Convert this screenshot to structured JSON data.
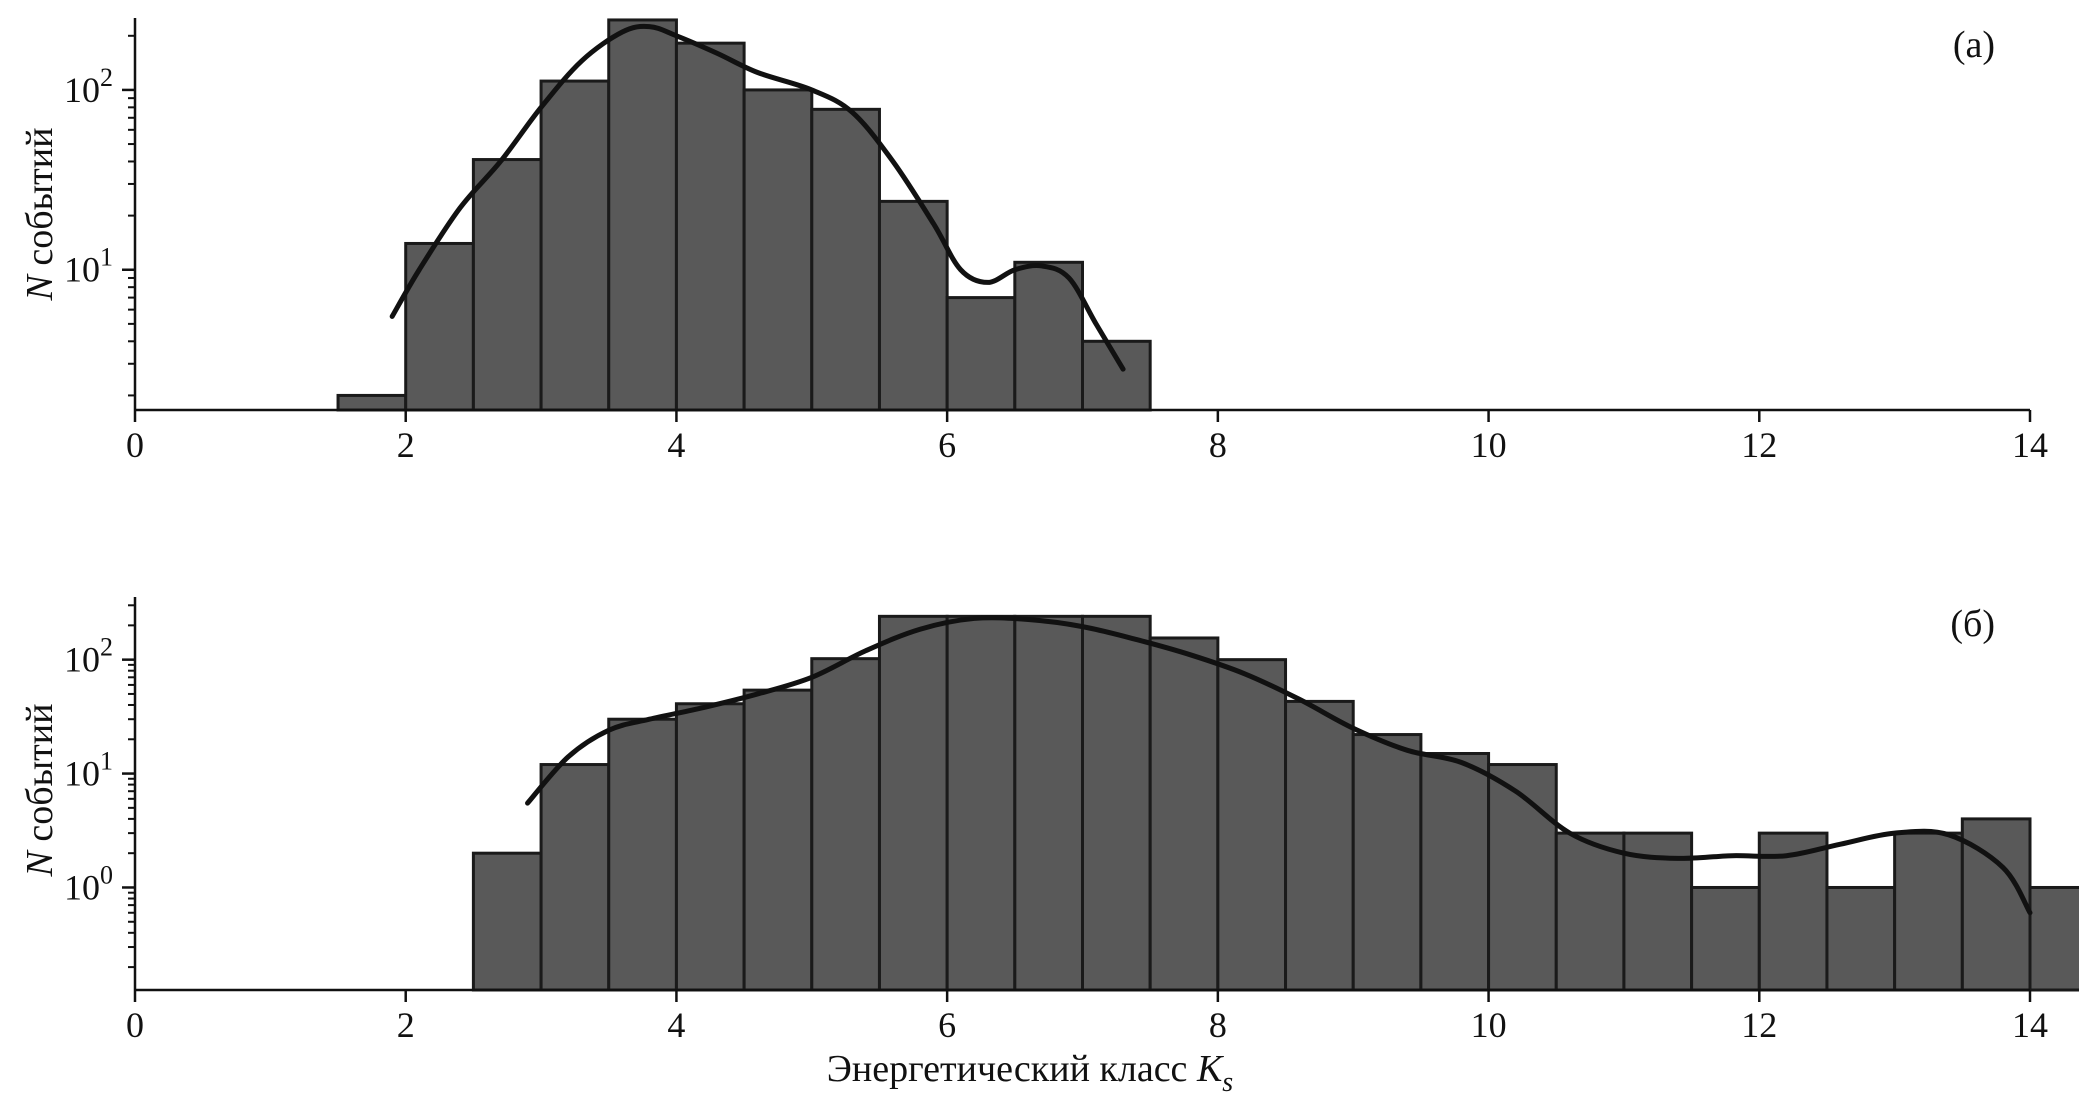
{
  "figure": {
    "xlabel_main": "Энергетический класс ",
    "xlabel_italic": "K",
    "xlabel_sub": "s"
  },
  "chart_data": [
    {
      "type": "bar",
      "panel_label": "(a)",
      "ylabel_italic": "N",
      "ylabel_rest": " событий",
      "yscale": "log",
      "xlim": [
        0,
        14
      ],
      "ylim_log10": [
        0.22,
        2.4
      ],
      "xticks": [
        "0",
        "2",
        "4",
        "6",
        "8",
        "10",
        "12",
        "14"
      ],
      "yticks": [
        {
          "base": "10",
          "exp": "1",
          "value": 10
        },
        {
          "base": "10",
          "exp": "2",
          "value": 100
        }
      ],
      "bin_width": 0.5,
      "bins": [
        {
          "start": 1.5,
          "count": 2
        },
        {
          "start": 2.0,
          "count": 14
        },
        {
          "start": 2.5,
          "count": 41
        },
        {
          "start": 3.0,
          "count": 112
        },
        {
          "start": 3.5,
          "count": 245
        },
        {
          "start": 4.0,
          "count": 182
        },
        {
          "start": 4.5,
          "count": 100
        },
        {
          "start": 5.0,
          "count": 78
        },
        {
          "start": 5.5,
          "count": 24
        },
        {
          "start": 6.0,
          "count": 7
        },
        {
          "start": 6.5,
          "count": 11
        },
        {
          "start": 7.0,
          "count": 4
        }
      ],
      "kde": [
        [
          1.9,
          5.5
        ],
        [
          2.1,
          10
        ],
        [
          2.4,
          22
        ],
        [
          2.7,
          40
        ],
        [
          3.0,
          80
        ],
        [
          3.3,
          145
        ],
        [
          3.6,
          210
        ],
        [
          3.8,
          225
        ],
        [
          4.0,
          200
        ],
        [
          4.3,
          160
        ],
        [
          4.6,
          125
        ],
        [
          5.0,
          100
        ],
        [
          5.3,
          75
        ],
        [
          5.6,
          40
        ],
        [
          5.9,
          18
        ],
        [
          6.1,
          10
        ],
        [
          6.3,
          8.5
        ],
        [
          6.5,
          10
        ],
        [
          6.7,
          10.5
        ],
        [
          6.9,
          9
        ],
        [
          7.1,
          5
        ],
        [
          7.3,
          2.8
        ]
      ]
    },
    {
      "type": "bar",
      "panel_label": "(б)",
      "ylabel_italic": "N",
      "ylabel_rest": " событий",
      "yscale": "log",
      "xlim": [
        0,
        14
      ],
      "ylim_log10": [
        -0.9,
        2.55
      ],
      "xticks": [
        "0",
        "2",
        "4",
        "6",
        "8",
        "10",
        "12",
        "14"
      ],
      "yticks": [
        {
          "base": "10",
          "exp": "0",
          "value": 1
        },
        {
          "base": "10",
          "exp": "1",
          "value": 10
        },
        {
          "base": "10",
          "exp": "2",
          "value": 100
        }
      ],
      "bin_width": 0.5,
      "bins": [
        {
          "start": 2.5,
          "count": 2
        },
        {
          "start": 3.0,
          "count": 12
        },
        {
          "start": 3.5,
          "count": 30
        },
        {
          "start": 4.0,
          "count": 41
        },
        {
          "start": 4.5,
          "count": 54
        },
        {
          "start": 5.0,
          "count": 102
        },
        {
          "start": 5.5,
          "count": 240
        },
        {
          "start": 6.0,
          "count": 240
        },
        {
          "start": 6.5,
          "count": 240
        },
        {
          "start": 7.0,
          "count": 240
        },
        {
          "start": 7.5,
          "count": 155
        },
        {
          "start": 8.0,
          "count": 100
        },
        {
          "start": 8.5,
          "count": 43
        },
        {
          "start": 9.0,
          "count": 22
        },
        {
          "start": 9.5,
          "count": 15
        },
        {
          "start": 10.0,
          "count": 12
        },
        {
          "start": 10.5,
          "count": 3
        },
        {
          "start": 11.0,
          "count": 3
        },
        {
          "start": 11.5,
          "count": 1
        },
        {
          "start": 12.0,
          "count": 3
        },
        {
          "start": 12.5,
          "count": 1
        },
        {
          "start": 13.0,
          "count": 3
        },
        {
          "start": 13.5,
          "count": 4
        },
        {
          "start": 14.0,
          "count": 1
        }
      ],
      "kde": [
        [
          2.9,
          5.5
        ],
        [
          3.2,
          14
        ],
        [
          3.5,
          24
        ],
        [
          3.8,
          30
        ],
        [
          4.2,
          38
        ],
        [
          4.6,
          50
        ],
        [
          5.0,
          70
        ],
        [
          5.4,
          120
        ],
        [
          5.8,
          185
        ],
        [
          6.2,
          230
        ],
        [
          6.6,
          225
        ],
        [
          7.0,
          195
        ],
        [
          7.4,
          150
        ],
        [
          7.8,
          110
        ],
        [
          8.2,
          75
        ],
        [
          8.6,
          45
        ],
        [
          9.0,
          25
        ],
        [
          9.4,
          16
        ],
        [
          9.8,
          12.5
        ],
        [
          10.2,
          7
        ],
        [
          10.6,
          3
        ],
        [
          11.0,
          2
        ],
        [
          11.4,
          1.8
        ],
        [
          11.8,
          1.9
        ],
        [
          12.2,
          1.9
        ],
        [
          12.6,
          2.4
        ],
        [
          13.0,
          3.0
        ],
        [
          13.4,
          2.9
        ],
        [
          13.8,
          1.5
        ],
        [
          14.0,
          0.6
        ]
      ]
    }
  ]
}
